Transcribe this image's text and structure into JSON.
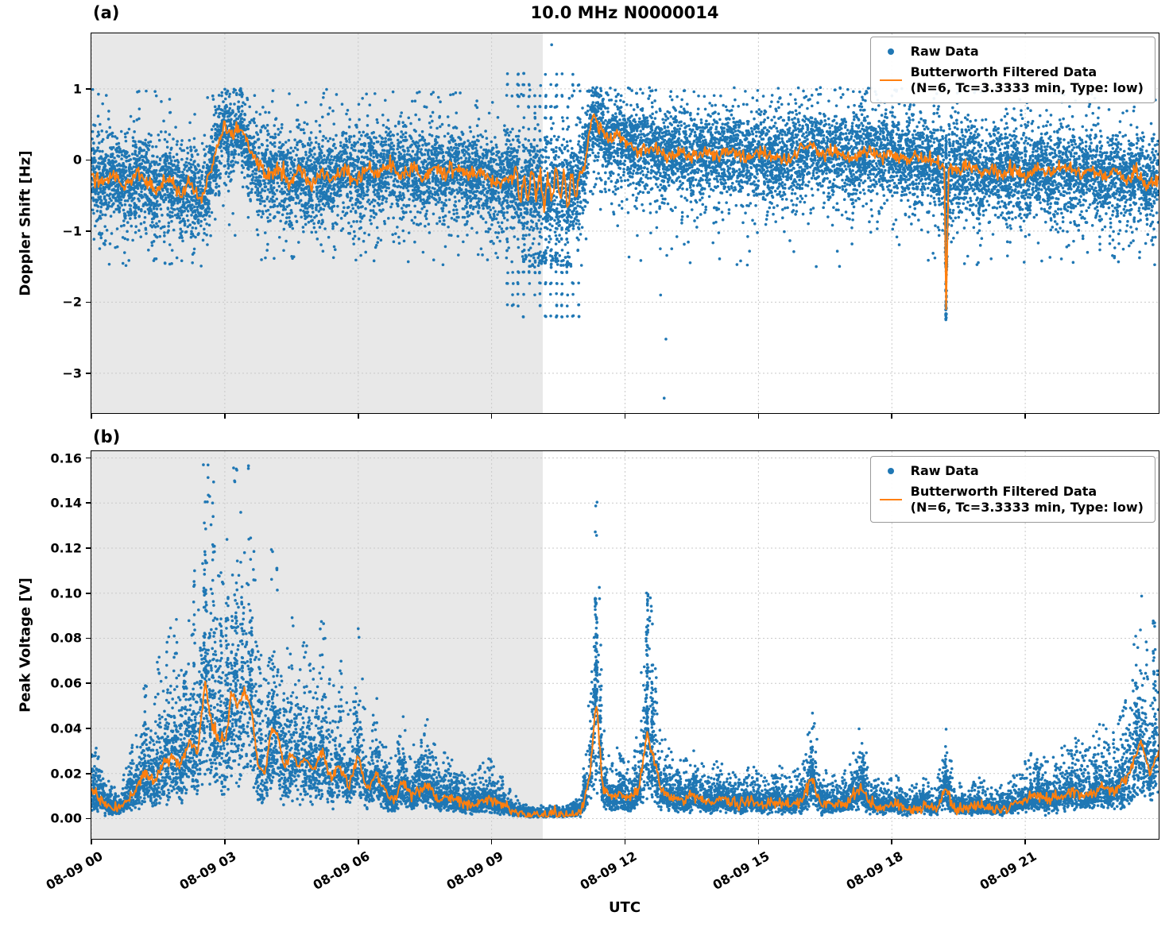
{
  "title": "10.0 MHz N0000014",
  "xlabel": "UTC",
  "panels": [
    {
      "label": "(a)"
    },
    {
      "label": "(b)"
    }
  ],
  "legend": {
    "raw_label": "Raw Data",
    "filtered_label": "Butterworth Filtered Data",
    "filtered_sublabel": "(N=6, Tc=3.3333 min, Type: low)"
  },
  "colors": {
    "raw": "#1f77b4",
    "filtered": "#ff7f0e",
    "shade": "#e8e8e8",
    "grid": "#c9c9c9"
  },
  "chart_data": [
    {
      "type": "scatter",
      "name": "doppler-shift-vs-time",
      "ylabel": "Doppler Shift [Hz]",
      "xlim_hours": [
        0,
        24
      ],
      "ylim": [
        -3.56,
        1.78
      ],
      "yticks": {
        "values": [
          1,
          0,
          -1,
          -2,
          -3
        ],
        "labels": [
          "1",
          "0",
          "−1",
          "−2",
          "−3"
        ]
      },
      "xtick_hours": [
        0,
        3,
        6,
        9,
        12,
        15,
        18,
        21
      ],
      "shaded_region_hours": [
        0,
        10.15
      ],
      "grid": true,
      "raw": {
        "kind": "band",
        "label": "Raw Data",
        "points": 14000,
        "core_sigma": 0.28,
        "wide_sigma": 0.55,
        "wide_frac": 0.2,
        "low_tail_frac": 0.04,
        "low_tail_sigma": 0.45
      },
      "stripes": {
        "x_start": 9.35,
        "x_end": 10.95,
        "columns": 14,
        "y_min": -2.2,
        "y_max": 1.35,
        "y_step": 0.155
      },
      "dense_blob": {
        "x_start": 9.6,
        "x_end": 10.8,
        "y_top": -1.3,
        "y_bottom": -1.52,
        "points": 70
      },
      "spike_column": {
        "x": 19.22,
        "y_min": -2.25,
        "y_max": 0.35,
        "points": 140
      },
      "outliers": [
        [
          10.35,
          1.62
        ],
        [
          12.88,
          -3.35
        ],
        [
          12.92,
          -2.52
        ],
        [
          12.8,
          -1.9
        ],
        [
          13.05,
          -1.25
        ],
        [
          14.6,
          -1.42
        ],
        [
          16.3,
          -1.5
        ],
        [
          20.6,
          -1.35
        ],
        [
          22.4,
          -1.3
        ]
      ],
      "filtered": {
        "label": "Butterworth Filtered Data (N=6, Tc=3.3333 min, Type: low)",
        "noise": 0.05,
        "osc_region": {
          "x_start": 9.5,
          "x_end": 10.95,
          "amplitude": 0.2,
          "period": 0.18
        },
        "points": [
          [
            0,
            -0.18
          ],
          [
            0.25,
            -0.32
          ],
          [
            0.5,
            -0.22
          ],
          [
            0.75,
            -0.38
          ],
          [
            1.0,
            -0.18
          ],
          [
            1.25,
            -0.3
          ],
          [
            1.5,
            -0.42
          ],
          [
            1.75,
            -0.28
          ],
          [
            2.0,
            -0.5
          ],
          [
            2.2,
            -0.3
          ],
          [
            2.45,
            -0.58
          ],
          [
            2.65,
            -0.25
          ],
          [
            2.85,
            0.2
          ],
          [
            3.0,
            0.5
          ],
          [
            3.15,
            0.32
          ],
          [
            3.35,
            0.48
          ],
          [
            3.55,
            0.15
          ],
          [
            3.75,
            -0.08
          ],
          [
            3.95,
            -0.22
          ],
          [
            4.2,
            -0.1
          ],
          [
            4.45,
            -0.3
          ],
          [
            4.7,
            -0.12
          ],
          [
            4.95,
            -0.35
          ],
          [
            5.2,
            -0.18
          ],
          [
            5.45,
            -0.28
          ],
          [
            5.7,
            -0.1
          ],
          [
            5.95,
            -0.3
          ],
          [
            6.2,
            -0.12
          ],
          [
            6.45,
            -0.2
          ],
          [
            6.7,
            -0.05
          ],
          [
            6.95,
            -0.22
          ],
          [
            7.2,
            -0.1
          ],
          [
            7.45,
            -0.25
          ],
          [
            7.7,
            -0.12
          ],
          [
            7.95,
            -0.2
          ],
          [
            8.2,
            -0.1
          ],
          [
            8.45,
            -0.22
          ],
          [
            8.7,
            -0.15
          ],
          [
            8.95,
            -0.28
          ],
          [
            9.2,
            -0.35
          ],
          [
            9.45,
            -0.22
          ],
          [
            9.7,
            -0.45
          ],
          [
            9.95,
            -0.28
          ],
          [
            10.2,
            -0.5
          ],
          [
            10.45,
            -0.3
          ],
          [
            10.7,
            -0.48
          ],
          [
            10.95,
            -0.3
          ],
          [
            11.1,
            -0.05
          ],
          [
            11.25,
            0.62
          ],
          [
            11.45,
            0.42
          ],
          [
            11.65,
            0.28
          ],
          [
            11.85,
            0.38
          ],
          [
            12.05,
            0.22
          ],
          [
            12.3,
            0.12
          ],
          [
            12.6,
            0.18
          ],
          [
            12.9,
            0.05
          ],
          [
            13.2,
            0.12
          ],
          [
            13.5,
            0.02
          ],
          [
            13.8,
            0.12
          ],
          [
            14.1,
            0.04
          ],
          [
            14.4,
            0.16
          ],
          [
            14.7,
            0.02
          ],
          [
            15.0,
            0.12
          ],
          [
            15.3,
            0.04
          ],
          [
            15.6,
            0.0
          ],
          [
            15.9,
            0.1
          ],
          [
            16.2,
            0.22
          ],
          [
            16.5,
            0.05
          ],
          [
            16.8,
            0.12
          ],
          [
            17.1,
            0.02
          ],
          [
            17.4,
            0.15
          ],
          [
            17.7,
            0.05
          ],
          [
            18.0,
            0.1
          ],
          [
            18.3,
            0.0
          ],
          [
            18.6,
            0.06
          ],
          [
            18.9,
            -0.04
          ],
          [
            19.1,
            -0.1
          ],
          [
            19.18,
            -0.1
          ],
          [
            19.22,
            -2.1
          ],
          [
            19.28,
            -0.12
          ],
          [
            19.5,
            -0.15
          ],
          [
            19.75,
            -0.08
          ],
          [
            20.0,
            -0.2
          ],
          [
            20.25,
            -0.1
          ],
          [
            20.5,
            -0.18
          ],
          [
            20.75,
            -0.1
          ],
          [
            21.0,
            -0.25
          ],
          [
            21.25,
            -0.12
          ],
          [
            21.5,
            -0.2
          ],
          [
            21.75,
            -0.12
          ],
          [
            22.0,
            -0.1
          ],
          [
            22.25,
            -0.22
          ],
          [
            22.5,
            -0.12
          ],
          [
            22.75,
            -0.25
          ],
          [
            23.0,
            -0.15
          ],
          [
            23.25,
            -0.28
          ],
          [
            23.5,
            -0.18
          ],
          [
            23.75,
            -0.35
          ],
          [
            24,
            -0.25
          ]
        ]
      }
    },
    {
      "type": "scatter",
      "name": "peak-voltage-vs-time",
      "ylabel": "Peak Voltage [V]",
      "xlim_hours": [
        0,
        24
      ],
      "ylim": [
        -0.009,
        0.163
      ],
      "yticks": {
        "values": [
          0.16,
          0.14,
          0.12,
          0.1,
          0.08,
          0.06,
          0.04,
          0.02,
          0.0
        ],
        "labels": [
          "0.16",
          "0.14",
          "0.12",
          "0.10",
          "0.08",
          "0.06",
          "0.04",
          "0.02",
          "0.00"
        ]
      },
      "xtick_hours": [
        0,
        3,
        6,
        9,
        12,
        15,
        18,
        21
      ],
      "xtick_labels": [
        "08-09 00",
        "08-09 03",
        "08-09 06",
        "08-09 09",
        "08-09 12",
        "08-09 15",
        "08-09 18",
        "08-09 21"
      ],
      "shaded_region_hours": [
        0,
        10.15
      ],
      "grid": true,
      "raw": {
        "kind": "scaled",
        "label": "Raw Data",
        "points": 12000,
        "factor_sigma": 0.5,
        "factor_max": 3.0,
        "base_noise": 0.0008
      },
      "spike_columns": [
        {
          "x": 1.2,
          "ymax": 0.06,
          "n": 15
        },
        {
          "x": 1.5,
          "ymax": 0.08,
          "n": 20
        },
        {
          "x": 1.9,
          "ymax": 0.095,
          "n": 20
        },
        {
          "x": 2.1,
          "ymax": 0.085,
          "n": 18
        },
        {
          "x": 2.3,
          "ymax": 0.115,
          "n": 25
        },
        {
          "x": 2.55,
          "ymax": 0.138,
          "n": 28
        },
        {
          "x": 2.75,
          "ymax": 0.153,
          "n": 22
        },
        {
          "x": 2.9,
          "ymax": 0.11,
          "n": 20
        },
        {
          "x": 3.05,
          "ymax": 0.124,
          "n": 26
        },
        {
          "x": 3.25,
          "ymax": 0.1,
          "n": 22
        },
        {
          "x": 3.4,
          "ymax": 0.103,
          "n": 22
        },
        {
          "x": 3.6,
          "ymax": 0.09,
          "n": 18
        },
        {
          "x": 3.8,
          "ymax": 0.078,
          "n": 16
        },
        {
          "x": 4.1,
          "ymax": 0.075,
          "n": 16
        },
        {
          "x": 4.35,
          "ymax": 0.065,
          "n": 14
        },
        {
          "x": 4.6,
          "ymax": 0.058,
          "n": 14
        },
        {
          "x": 4.9,
          "ymax": 0.05,
          "n": 12
        },
        {
          "x": 5.2,
          "ymax": 0.06,
          "n": 12
        },
        {
          "x": 5.6,
          "ymax": 0.05,
          "n": 12
        },
        {
          "x": 6.0,
          "ymax": 0.045,
          "n": 10
        },
        {
          "x": 6.3,
          "ymax": 0.04,
          "n": 10
        },
        {
          "x": 6.9,
          "ymax": 0.034,
          "n": 10
        },
        {
          "x": 7.3,
          "ymax": 0.027,
          "n": 8
        },
        {
          "x": 7.8,
          "ymax": 0.025,
          "n": 8
        },
        {
          "x": 8.2,
          "ymax": 0.02,
          "n": 8
        },
        {
          "x": 8.6,
          "ymax": 0.016,
          "n": 6
        },
        {
          "x": 11.35,
          "ymax": 0.098,
          "n": 70
        },
        {
          "x": 11.45,
          "ymax": 0.06,
          "n": 30
        },
        {
          "x": 12.5,
          "ymax": 0.103,
          "n": 60
        },
        {
          "x": 12.62,
          "ymax": 0.07,
          "n": 35
        },
        {
          "x": 13.2,
          "ymax": 0.022,
          "n": 12
        },
        {
          "x": 14.1,
          "ymax": 0.02,
          "n": 10
        },
        {
          "x": 16.2,
          "ymax": 0.033,
          "n": 30
        },
        {
          "x": 17.35,
          "ymax": 0.03,
          "n": 24
        },
        {
          "x": 19.2,
          "ymax": 0.027,
          "n": 22
        },
        {
          "x": 21.3,
          "ymax": 0.025,
          "n": 18
        },
        {
          "x": 22.6,
          "ymax": 0.022,
          "n": 14
        },
        {
          "x": 23.5,
          "ymax": 0.062,
          "n": 30
        },
        {
          "x": 23.9,
          "ymax": 0.088,
          "n": 40
        }
      ],
      "filtered": {
        "label": "Butterworth Filtered Data (N=6, Tc=3.3333 min, Type: low)",
        "noise": 0.0012,
        "points": [
          [
            0,
            0.013
          ],
          [
            0.2,
            0.009
          ],
          [
            0.4,
            0.005
          ],
          [
            0.6,
            0.004
          ],
          [
            0.8,
            0.008
          ],
          [
            1.0,
            0.012
          ],
          [
            1.2,
            0.02
          ],
          [
            1.4,
            0.016
          ],
          [
            1.6,
            0.024
          ],
          [
            1.8,
            0.028
          ],
          [
            2.0,
            0.024
          ],
          [
            2.2,
            0.034
          ],
          [
            2.4,
            0.03
          ],
          [
            2.55,
            0.062
          ],
          [
            2.7,
            0.042
          ],
          [
            2.85,
            0.036
          ],
          [
            3.0,
            0.034
          ],
          [
            3.15,
            0.056
          ],
          [
            3.3,
            0.05
          ],
          [
            3.45,
            0.057
          ],
          [
            3.6,
            0.048
          ],
          [
            3.75,
            0.024
          ],
          [
            3.9,
            0.02
          ],
          [
            4.05,
            0.04
          ],
          [
            4.2,
            0.036
          ],
          [
            4.35,
            0.022
          ],
          [
            4.5,
            0.03
          ],
          [
            4.65,
            0.024
          ],
          [
            4.8,
            0.026
          ],
          [
            5.0,
            0.022
          ],
          [
            5.2,
            0.03
          ],
          [
            5.4,
            0.018
          ],
          [
            5.6,
            0.024
          ],
          [
            5.8,
            0.014
          ],
          [
            6.0,
            0.028
          ],
          [
            6.2,
            0.012
          ],
          [
            6.4,
            0.02
          ],
          [
            6.6,
            0.012
          ],
          [
            6.8,
            0.007
          ],
          [
            7.0,
            0.016
          ],
          [
            7.2,
            0.01
          ],
          [
            7.4,
            0.013
          ],
          [
            7.6,
            0.015
          ],
          [
            7.8,
            0.008
          ],
          [
            8.0,
            0.01
          ],
          [
            8.3,
            0.007
          ],
          [
            8.6,
            0.006
          ],
          [
            8.9,
            0.009
          ],
          [
            9.2,
            0.006
          ],
          [
            9.5,
            0.003
          ],
          [
            9.8,
            0.0015
          ],
          [
            10.2,
            0.0015
          ],
          [
            10.6,
            0.0015
          ],
          [
            11.0,
            0.003
          ],
          [
            11.2,
            0.018
          ],
          [
            11.35,
            0.052
          ],
          [
            11.5,
            0.014
          ],
          [
            11.7,
            0.008
          ],
          [
            11.9,
            0.011
          ],
          [
            12.1,
            0.008
          ],
          [
            12.3,
            0.013
          ],
          [
            12.5,
            0.038
          ],
          [
            12.65,
            0.026
          ],
          [
            12.8,
            0.013
          ],
          [
            13.0,
            0.01
          ],
          [
            13.3,
            0.008
          ],
          [
            13.6,
            0.01
          ],
          [
            13.9,
            0.007
          ],
          [
            14.2,
            0.009
          ],
          [
            14.5,
            0.006
          ],
          [
            14.8,
            0.008
          ],
          [
            15.1,
            0.006
          ],
          [
            15.4,
            0.008
          ],
          [
            15.7,
            0.006
          ],
          [
            16.0,
            0.008
          ],
          [
            16.2,
            0.018
          ],
          [
            16.4,
            0.007
          ],
          [
            16.7,
            0.006
          ],
          [
            17.0,
            0.007
          ],
          [
            17.3,
            0.014
          ],
          [
            17.5,
            0.007
          ],
          [
            17.8,
            0.005
          ],
          [
            18.1,
            0.006
          ],
          [
            18.4,
            0.004
          ],
          [
            18.7,
            0.006
          ],
          [
            19.0,
            0.004
          ],
          [
            19.2,
            0.014
          ],
          [
            19.4,
            0.005
          ],
          [
            19.7,
            0.004
          ],
          [
            20.0,
            0.006
          ],
          [
            20.3,
            0.004
          ],
          [
            20.6,
            0.005
          ],
          [
            20.9,
            0.007
          ],
          [
            21.2,
            0.011
          ],
          [
            21.5,
            0.008
          ],
          [
            21.8,
            0.01
          ],
          [
            22.1,
            0.012
          ],
          [
            22.4,
            0.01
          ],
          [
            22.7,
            0.014
          ],
          [
            23.0,
            0.012
          ],
          [
            23.3,
            0.018
          ],
          [
            23.6,
            0.034
          ],
          [
            23.8,
            0.02
          ],
          [
            24,
            0.03
          ]
        ]
      }
    }
  ]
}
